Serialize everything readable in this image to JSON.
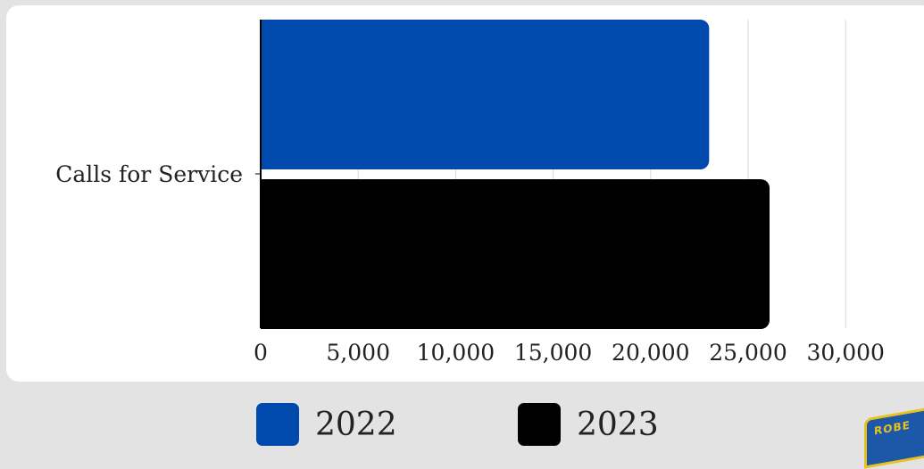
{
  "chart_data": {
    "type": "bar",
    "orientation": "horizontal",
    "categories": [
      "Calls for Service"
    ],
    "series": [
      {
        "name": "2022",
        "values": [
          23000
        ],
        "color": "#004aad"
      },
      {
        "name": "2023",
        "values": [
          26100
        ],
        "color": "#000000"
      }
    ],
    "xlim": [
      0,
      30000
    ],
    "x_ticks": [
      0,
      5000,
      10000,
      15000,
      20000,
      25000,
      30000
    ],
    "x_tick_labels": [
      "0",
      "5,000",
      "10,000",
      "15,000",
      "20,000",
      "25,000",
      "30,000"
    ],
    "grid": true,
    "legend_position": "bottom"
  },
  "legend": [
    {
      "label": "2022",
      "color": "#004aad"
    },
    {
      "label": "2023",
      "color": "#000000"
    }
  ],
  "badge": {
    "text": "ROBE"
  }
}
